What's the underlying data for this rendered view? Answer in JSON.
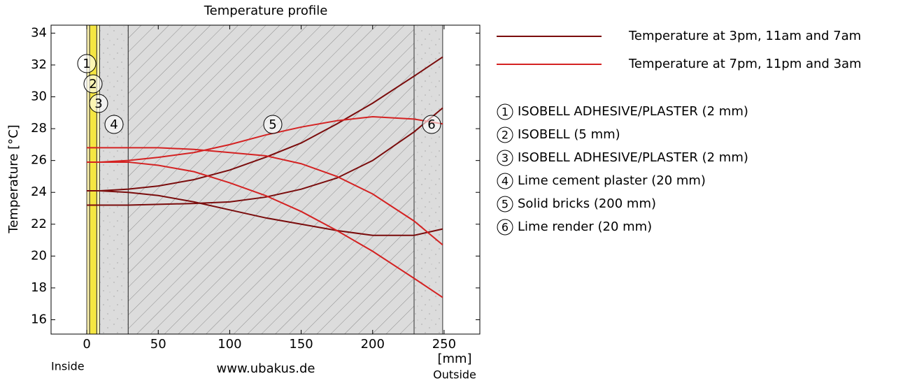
{
  "chart_data": {
    "type": "line",
    "title": "Temperature profile",
    "y_label": "Temperature  [°C]",
    "x_unit": "[mm]",
    "inside_label": "Inside",
    "outside_label": "Outside",
    "source": "www.ubakus.de",
    "xlim": [
      -25,
      275
    ],
    "xticks": [
      0,
      50,
      100,
      150,
      200,
      250
    ],
    "ylim": [
      15.1,
      34.5
    ],
    "yticks": [
      16,
      18,
      20,
      22,
      24,
      26,
      28,
      30,
      32,
      34
    ],
    "x": [
      0,
      9,
      29,
      50,
      75,
      100,
      125,
      150,
      175,
      200,
      229,
      249
    ],
    "series": [
      {
        "name": "Temperature at 3pm, 11am and 7am",
        "color": "#7a0c0c",
        "curves": [
          [
            24.1,
            24.1,
            24.2,
            24.4,
            24.8,
            25.4,
            26.2,
            27.1,
            28.3,
            29.6,
            31.3,
            32.5
          ],
          [
            23.2,
            23.2,
            23.2,
            23.25,
            23.3,
            23.4,
            23.7,
            24.2,
            24.9,
            26.0,
            27.8,
            29.3
          ],
          [
            24.1,
            24.1,
            24.0,
            23.8,
            23.4,
            22.9,
            22.4,
            22.0,
            21.6,
            21.3,
            21.3,
            21.7
          ]
        ]
      },
      {
        "name": "Temperature at 7pm, 11pm and 3am",
        "color": "#d42222",
        "curves": [
          [
            25.9,
            25.9,
            26.0,
            26.2,
            26.5,
            27.0,
            27.6,
            28.1,
            28.5,
            28.75,
            28.6,
            28.3
          ],
          [
            26.8,
            26.8,
            26.8,
            26.8,
            26.7,
            26.5,
            26.3,
            25.8,
            25.0,
            23.9,
            22.2,
            20.7
          ],
          [
            25.9,
            25.9,
            25.9,
            25.7,
            25.3,
            24.6,
            23.8,
            22.8,
            21.6,
            20.3,
            18.6,
            17.4
          ]
        ]
      }
    ],
    "layers": [
      {
        "number": "1",
        "name": "ISOBELL ADHESIVE/PLASTER (2 mm)",
        "from": 0,
        "to": 2,
        "fill": "#fff5b0"
      },
      {
        "number": "2",
        "name": "ISOBELL (5 mm)",
        "from": 2,
        "to": 7,
        "fill": "#f5e642"
      },
      {
        "number": "3",
        "name": "ISOBELL ADHESIVE/PLASTER (2 mm)",
        "from": 7,
        "to": 9,
        "fill": "#fff5b0"
      },
      {
        "number": "4",
        "name": "Lime cement plaster (20 mm)",
        "from": 9,
        "to": 29,
        "fill": "speckle"
      },
      {
        "number": "5",
        "name": "Solid bricks (200 mm)",
        "from": 29,
        "to": 229,
        "fill": "hatch"
      },
      {
        "number": "6",
        "name": "Lime render (20 mm)",
        "from": 229,
        "to": 249,
        "fill": "speckle"
      }
    ]
  }
}
